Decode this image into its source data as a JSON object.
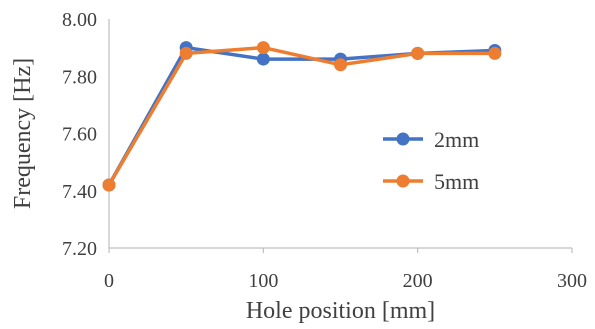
{
  "chart_data": {
    "type": "line",
    "xlabel": "Hole position [mm]",
    "ylabel": "Frequency [Hz]",
    "xlim": [
      0,
      300
    ],
    "ylim": [
      7.2,
      8.0
    ],
    "x_ticks": [
      "0",
      "100",
      "200",
      "300"
    ],
    "y_ticks": [
      "7.20",
      "7.40",
      "7.60",
      "7.80",
      "8.00"
    ],
    "grid": false,
    "legend_position": "right",
    "series": [
      {
        "name": "2mm",
        "color": "#4472C4",
        "x": [
          0,
          50,
          100,
          150,
          200,
          250
        ],
        "y": [
          7.42,
          7.9,
          7.86,
          7.86,
          7.88,
          7.89
        ]
      },
      {
        "name": "5mm",
        "color": "#ED7D31",
        "x": [
          0,
          50,
          100,
          150,
          200,
          250
        ],
        "y": [
          7.42,
          7.88,
          7.9,
          7.84,
          7.88,
          7.88
        ]
      }
    ]
  }
}
